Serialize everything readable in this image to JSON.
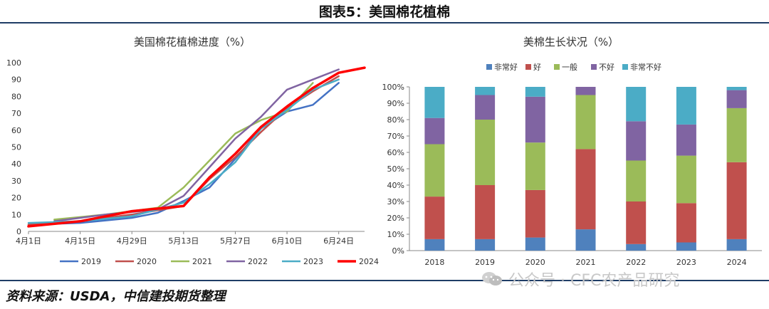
{
  "figure": {
    "title": "图表5：美国棉花植棉",
    "source": "资料来源：USDA，中信建投期货整理",
    "watermark": "公众号 · CFC农产品研究",
    "watermark_icon": "wechat-icon"
  },
  "chart_data": [
    {
      "type": "line",
      "title": "美国棉花植棉进度（%）",
      "xlabel": "",
      "ylabel": "",
      "x_ticks": [
        "4月1日",
        "4月15日",
        "4月29日",
        "5月13日",
        "5月27日",
        "6月10日",
        "6月24日"
      ],
      "x_range": [
        0,
        13
      ],
      "ylim": [
        0,
        100
      ],
      "y_ticks": [
        0,
        10,
        20,
        30,
        40,
        50,
        60,
        70,
        80,
        90,
        100
      ],
      "legend": "bottom",
      "grid": false,
      "series": [
        {
          "name": "2019",
          "color": "#4472c4",
          "width": 2.5,
          "x": [
            0,
            2,
            4,
            5,
            6,
            7,
            8,
            9,
            10,
            11,
            12
          ],
          "y": [
            4,
            5,
            8,
            11,
            18,
            26,
            43,
            61,
            71,
            75,
            88
          ]
        },
        {
          "name": "2020",
          "color": "#c0504d",
          "width": 2.5,
          "x": [
            0,
            2,
            4,
            6,
            7,
            8,
            9,
            10,
            11,
            12
          ],
          "y": [
            4,
            6,
            10,
            15,
            31,
            44,
            59,
            73,
            83,
            92
          ]
        },
        {
          "name": "2021",
          "color": "#9bbb59",
          "width": 2.5,
          "x": [
            1,
            3,
            5,
            6,
            7,
            8,
            9,
            10,
            11
          ],
          "y": [
            7,
            10,
            14,
            26,
            42,
            58,
            66,
            71,
            88
          ]
        },
        {
          "name": "2022",
          "color": "#8064a2",
          "width": 2.5,
          "x": [
            1,
            3,
            5,
            6,
            7,
            8,
            9,
            10,
            11,
            12
          ],
          "y": [
            6,
            10,
            13,
            21,
            38,
            55,
            68,
            84,
            90,
            96
          ]
        },
        {
          "name": "2023",
          "color": "#4bacc6",
          "width": 2.5,
          "x": [
            0,
            2,
            4,
            5,
            6,
            7,
            8,
            9,
            10,
            11,
            12
          ],
          "y": [
            5,
            6,
            9,
            13,
            17,
            28,
            41,
            61,
            72,
            84,
            90
          ]
        },
        {
          "name": "2024",
          "color": "#ff0000",
          "width": 3.5,
          "x": [
            0,
            2,
            3,
            4,
            6,
            7,
            8,
            9,
            10,
            11,
            12,
            13
          ],
          "y": [
            3,
            6,
            9,
            12,
            15,
            32,
            46,
            62,
            74,
            85,
            94,
            97
          ]
        }
      ]
    },
    {
      "type": "bar",
      "stacked": true,
      "title": "美棉生长状况（%）",
      "xlabel": "",
      "ylabel": "",
      "categories": [
        "2018",
        "2019",
        "2020",
        "2021",
        "2022",
        "2023",
        "2024"
      ],
      "ylim": [
        0,
        100
      ],
      "y_ticks": [
        "0%",
        "10%",
        "20%",
        "30%",
        "40%",
        "50%",
        "60%",
        "70%",
        "80%",
        "90%",
        "100%"
      ],
      "legend": "top",
      "grid": false,
      "series": [
        {
          "name": "非常好",
          "color": "#4f81bd",
          "values": [
            7,
            7,
            8,
            13,
            4,
            5,
            7
          ]
        },
        {
          "name": "好",
          "color": "#c0504d",
          "values": [
            26,
            33,
            29,
            49,
            26,
            24,
            47
          ]
        },
        {
          "name": "一般",
          "color": "#9bbb59",
          "values": [
            32,
            40,
            29,
            33,
            25,
            29,
            33
          ]
        },
        {
          "name": "不好",
          "color": "#8064a2",
          "values": [
            16,
            15,
            28,
            5,
            24,
            19,
            11
          ]
        },
        {
          "name": "非常不好",
          "color": "#4bacc6",
          "values": [
            19,
            5,
            6,
            0,
            21,
            23,
            2
          ]
        }
      ]
    }
  ]
}
